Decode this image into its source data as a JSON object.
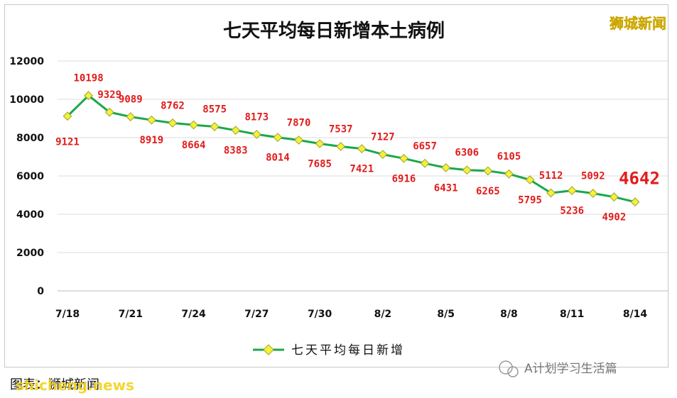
{
  "chart_data": {
    "type": "line",
    "title": "七天平均每日新增本土病例",
    "x": [
      "7/18",
      "7/19",
      "7/20",
      "7/21",
      "7/22",
      "7/23",
      "7/24",
      "7/25",
      "7/26",
      "7/27",
      "7/28",
      "7/29",
      "7/30",
      "7/31",
      "8/1",
      "8/2",
      "8/3",
      "8/4",
      "8/5",
      "8/6",
      "8/7",
      "8/8",
      "8/9",
      "8/10",
      "8/11",
      "8/12",
      "8/13",
      "8/14"
    ],
    "xtick_labels": [
      "7/18",
      "7/21",
      "7/24",
      "7/27",
      "7/30",
      "8/2",
      "8/5",
      "8/8",
      "8/11",
      "8/14"
    ],
    "yticks": [
      "0",
      "2000",
      "4000",
      "6000",
      "8000",
      "10000",
      "12000"
    ],
    "ylim": [
      0,
      12000
    ],
    "grid": true,
    "series": [
      {
        "name": "七天平均每日新增",
        "values": [
          9121,
          10198,
          9329,
          9089,
          8919,
          8762,
          8664,
          8575,
          8383,
          8173,
          8014,
          7870,
          7685,
          7537,
          7421,
          7127,
          6916,
          6657,
          6431,
          6306,
          6265,
          6105,
          5795,
          5112,
          5236,
          5092,
          4902,
          4642
        ],
        "color": "#1aa84a",
        "marker_color": "#f5f03a"
      }
    ],
    "data_labels": [
      "9121",
      "10198",
      "9329",
      "9089",
      "8919",
      "8762",
      "8664",
      "8575",
      "8383",
      "8173",
      "8014",
      "7870",
      "7685",
      "7537",
      "7421",
      "7127",
      "6916",
      "6657",
      "6431",
      "6306",
      "6265",
      "6105",
      "5795",
      "5112",
      "5236",
      "5092",
      "4902",
      "4642"
    ],
    "legend": "bottom-center",
    "label_color": "#e21b1b"
  },
  "branding": {
    "logo_text": "狮城新闻",
    "credit": "图表：狮城新闻",
    "watermark_left": "shicheng.news",
    "watermark_right": "A计划学习生活篇"
  }
}
